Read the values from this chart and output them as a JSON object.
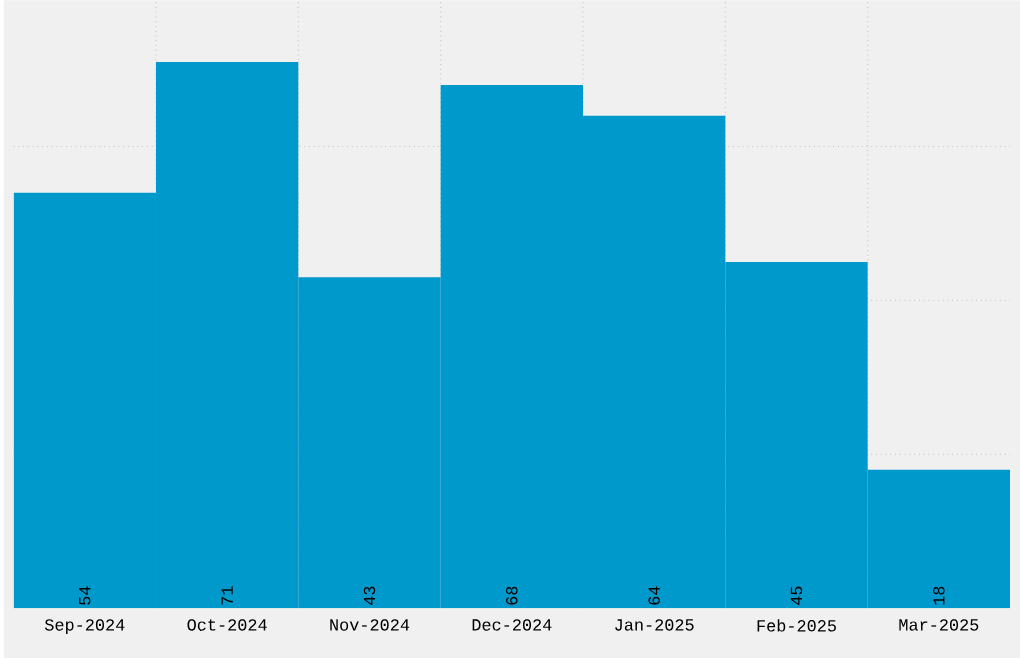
{
  "chart_data": {
    "type": "bar",
    "categories": [
      "Sep-2024",
      "Oct-2024",
      "Nov-2024",
      "Dec-2024",
      "Jan-2025",
      "Feb-2025",
      "Mar-2025"
    ],
    "values": [
      54,
      71,
      43,
      68,
      64,
      45,
      18
    ],
    "color": "#0099cc",
    "ylim": [
      0,
      79
    ],
    "yticks": [
      {
        "value": 20,
        "label": null
      },
      {
        "value": 40,
        "label": null
      },
      {
        "value": 60,
        "label": null
      }
    ],
    "grid": true,
    "tick_labels": "x",
    "data_labels": true
  }
}
